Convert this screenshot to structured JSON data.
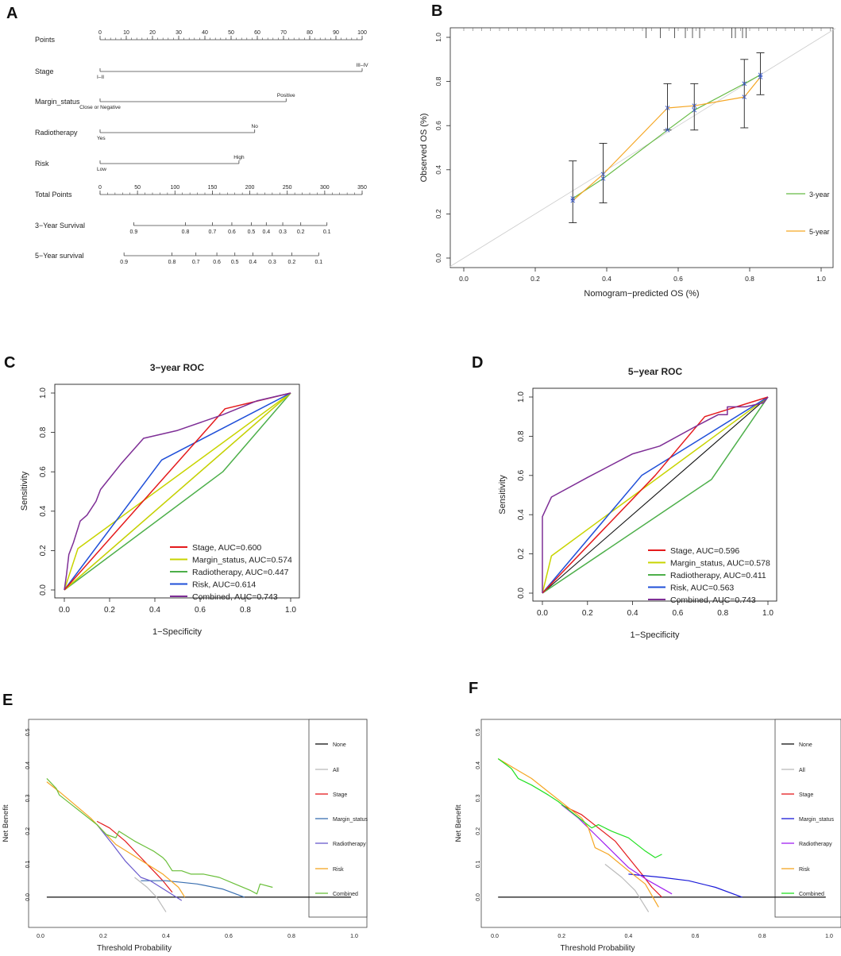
{
  "panel_letters": [
    "A",
    "B",
    "C",
    "D",
    "E",
    "F"
  ],
  "colors": {
    "stage": "#e41a1c",
    "margin": "#c8d400",
    "radio": "#4daf4a",
    "risk": "#1f4fd8",
    "combined": "#7e2e96",
    "dca_margin": "#3a6fb0",
    "dca_radio": "#6a5acd",
    "dca_risk": "#f5a623",
    "dca_comb_e": "#6abf3a",
    "dca_margin_f": "#1a1ad8",
    "dca_radio_f": "#a020f0",
    "dca_comb_f": "#22e022",
    "cal_3": "#66bb44",
    "cal_5": "#f5a623"
  },
  "chart_data": [
    {
      "panel": "A",
      "type": "nomogram",
      "rows": [
        {
          "label": "Points",
          "ticks": [
            "0",
            "10",
            "20",
            "30",
            "40",
            "50",
            "60",
            "70",
            "80",
            "90",
            "100"
          ],
          "range": [
            0,
            100
          ]
        },
        {
          "label": "Stage",
          "levels": [
            {
              "name": "I–II",
              "points": 0
            },
            {
              "name": "III–IV",
              "points": 100
            }
          ]
        },
        {
          "label": "Margin_status",
          "levels": [
            {
              "name": "Close or Negative",
              "points": 0
            },
            {
              "name": "Positive",
              "points": 71
            }
          ]
        },
        {
          "label": "Radiotherapy",
          "levels": [
            {
              "name": "Yes",
              "points": 0
            },
            {
              "name": "No",
              "points": 59
            }
          ]
        },
        {
          "label": "Risk",
          "levels": [
            {
              "name": "Low",
              "points": 0
            },
            {
              "name": "High",
              "points": 53
            }
          ]
        },
        {
          "label": "Total Points",
          "ticks": [
            "0",
            "50",
            "100",
            "150",
            "200",
            "250",
            "300",
            "350"
          ],
          "range": [
            0,
            350
          ]
        },
        {
          "label": "3−Year Survival",
          "ticks": [
            "0.9",
            "0.8",
            "0.7",
            "0.6",
            "0.5",
            "0.4",
            "0.3",
            "0.2",
            "0.1"
          ],
          "total_points_at_ticks": [
            45,
            114,
            150,
            176,
            202,
            222,
            244,
            268,
            303
          ]
        },
        {
          "label": "5−Year survival",
          "ticks": [
            "0.9",
            "0.8",
            "0.7",
            "0.6",
            "0.5",
            "0.4",
            "0.3",
            "0.2",
            "0.1"
          ],
          "total_points_at_ticks": [
            32,
            96,
            128,
            156,
            180,
            204,
            230,
            256,
            292
          ]
        }
      ]
    },
    {
      "panel": "B",
      "type": "line",
      "title": "",
      "xlabel": "Nomogram−predicted OS (%)",
      "ylabel": "Observed OS (%)",
      "xlim": [
        0,
        1
      ],
      "ylim": [
        0,
        1
      ],
      "xticks": [
        "0.0",
        "0.2",
        "0.4",
        "0.6",
        "0.8",
        "1.0"
      ],
      "yticks": [
        "0.0",
        "0.2",
        "0.4",
        "0.6",
        "0.8",
        "1.0"
      ],
      "rug": [
        0.51,
        0.55,
        0.59,
        0.62,
        0.64,
        0.66,
        0.75,
        0.76,
        0.78,
        0.79
      ],
      "errorbars": [
        {
          "x": 0.305,
          "lo": 0.16,
          "hi": 0.44
        },
        {
          "x": 0.39,
          "lo": 0.25,
          "hi": 0.52
        },
        {
          "x": 0.57,
          "lo": 0.58,
          "hi": 0.79
        },
        {
          "x": 0.645,
          "lo": 0.58,
          "hi": 0.79
        },
        {
          "x": 0.785,
          "lo": 0.59,
          "hi": 0.9
        },
        {
          "x": 0.83,
          "lo": 0.74,
          "hi": 0.93
        }
      ],
      "series": [
        {
          "name": "3-year",
          "x": [
            0.305,
            0.39,
            0.57,
            0.645,
            0.785,
            0.83
          ],
          "y": [
            0.27,
            0.36,
            0.58,
            0.67,
            0.79,
            0.83
          ]
        },
        {
          "name": "5-year",
          "x": [
            0.305,
            0.39,
            0.57,
            0.645,
            0.785,
            0.83
          ],
          "y": [
            0.26,
            0.38,
            0.68,
            0.69,
            0.73,
            0.82
          ]
        }
      ]
    },
    {
      "panel": "C",
      "type": "line",
      "title": "3−year ROC",
      "xlabel": "1−Specificity",
      "ylabel": "Sensitivity",
      "xlim": [
        0,
        1
      ],
      "ylim": [
        0,
        1
      ],
      "xticks": [
        "0.0",
        "0.2",
        "0.4",
        "0.6",
        "0.8",
        "1.0"
      ],
      "yticks": [
        "0.0",
        "0.2",
        "0.4",
        "0.6",
        "0.8",
        "1.0"
      ],
      "series": [
        {
          "name": "Stage, AUC=0.600",
          "key": "stage",
          "x": [
            0,
            0.71,
            1
          ],
          "y": [
            0,
            0.92,
            1
          ]
        },
        {
          "name": "Margin_status, AUC=0.574",
          "key": "margin",
          "x": [
            0,
            1
          ],
          "y": [
            0,
            1
          ],
          "x2": [
            0,
            0.06,
            1
          ],
          "y2": [
            0,
            0.21,
            1
          ]
        },
        {
          "name": "Radiotherapy, AUC=0.447",
          "key": "radio",
          "x": [
            0,
            0.7,
            1
          ],
          "y": [
            0,
            0.6,
            1
          ]
        },
        {
          "name": "Risk, AUC=0.614",
          "key": "risk",
          "x": [
            0,
            0.43,
            1
          ],
          "y": [
            0,
            0.66,
            1
          ]
        },
        {
          "name": "Combined, AUC=0.743",
          "key": "combined",
          "x": [
            0,
            0.01,
            0.02,
            0.04,
            0.07,
            0.1,
            0.14,
            0.16,
            0.25,
            0.35,
            0.5,
            0.7,
            0.85,
            1
          ],
          "y": [
            0,
            0.08,
            0.18,
            0.24,
            0.35,
            0.38,
            0.45,
            0.51,
            0.64,
            0.77,
            0.81,
            0.89,
            0.96,
            1
          ]
        }
      ]
    },
    {
      "panel": "D",
      "type": "line",
      "title": "5−year ROC",
      "xlabel": "1−Specificity",
      "ylabel": "Sensitivity",
      "xlim": [
        0,
        1
      ],
      "ylim": [
        0,
        1
      ],
      "xticks": [
        "0.0",
        "0.2",
        "0.4",
        "0.6",
        "0.8",
        "1.0"
      ],
      "yticks": [
        "0.0",
        "0.2",
        "0.4",
        "0.6",
        "0.8",
        "1.0"
      ],
      "series": [
        {
          "name": "Stage, AUC=0.596",
          "key": "stage",
          "x": [
            0,
            0.5,
            0.72,
            1
          ],
          "y": [
            0,
            0.6,
            0.9,
            1
          ]
        },
        {
          "name": "Margin_status, AUC=0.578",
          "key": "margin",
          "x": [
            0,
            0.04,
            1
          ],
          "y": [
            0,
            0.19,
            1
          ]
        },
        {
          "name": "Radiotherapy, AUC=0.411",
          "key": "radio",
          "x": [
            0,
            0.75,
            1
          ],
          "y": [
            0,
            0.58,
            1
          ]
        },
        {
          "name": "Risk, AUC=0.563",
          "key": "risk",
          "x": [
            0,
            0.44,
            1
          ],
          "y": [
            0,
            0.6,
            1
          ]
        },
        {
          "name": "Combined, AUC=0.743",
          "key": "combined",
          "x": [
            0,
            0,
            0.04,
            0.2,
            0.4,
            0.52,
            0.68,
            0.78,
            0.82,
            0.82,
            0.9,
            0.98,
            1
          ],
          "y": [
            0,
            0.39,
            0.49,
            0.59,
            0.71,
            0.75,
            0.85,
            0.91,
            0.91,
            0.95,
            0.95,
            0.97,
            1
          ]
        }
      ]
    },
    {
      "panel": "E",
      "type": "line",
      "title": "",
      "xlabel": "Threshold Probability",
      "ylabel": "Net Benefit",
      "xlim": [
        0,
        1
      ],
      "ylim": [
        -0.07,
        0.52
      ],
      "xticks": [
        "0.0",
        "0.2",
        "0.4",
        "0.6",
        "0.8",
        "1.0"
      ],
      "yticks": [
        "0.0",
        "0.1",
        "0.2",
        "0.3",
        "0.4",
        "0.5"
      ],
      "legend": [
        "None",
        "All",
        "Stage",
        "Margin_status",
        "Radiotherapy",
        "Risk",
        "Combined"
      ],
      "series": [
        {
          "name": "None",
          "x": [
            0.02,
            0.99
          ],
          "y": [
            0,
            0
          ]
        },
        {
          "name": "All",
          "x": [
            0.3,
            0.34,
            0.37,
            0.4
          ],
          "y": [
            0.06,
            0.03,
            0.0,
            -0.045
          ]
        },
        {
          "name": "Stage",
          "x": [
            0.18,
            0.22,
            0.27,
            0.31,
            0.35,
            0.39,
            0.42
          ],
          "y": [
            0.23,
            0.21,
            0.17,
            0.13,
            0.09,
            0.05,
            0.015
          ]
        },
        {
          "name": "Margin_status",
          "x": [
            0.32,
            0.4,
            0.5,
            0.58,
            0.65
          ],
          "y": [
            0.05,
            0.05,
            0.04,
            0.025,
            0.0
          ]
        },
        {
          "name": "Radiotherapy",
          "x": [
            0.18,
            0.23,
            0.27,
            0.32,
            0.35,
            0.4,
            0.45
          ],
          "y": [
            0.22,
            0.16,
            0.11,
            0.06,
            0.05,
            0.02,
            -0.01
          ]
        },
        {
          "name": "Risk",
          "x": [
            0.02,
            0.06,
            0.11,
            0.16,
            0.2,
            0.24,
            0.29,
            0.34,
            0.39,
            0.44,
            0.46
          ],
          "y": [
            0.35,
            0.32,
            0.28,
            0.24,
            0.2,
            0.16,
            0.13,
            0.1,
            0.07,
            0.03,
            0.0
          ]
        },
        {
          "name": "Combined",
          "x": [
            0.02,
            0.05,
            0.06,
            0.1,
            0.14,
            0.18,
            0.21,
            0.24,
            0.25,
            0.3,
            0.34,
            0.36,
            0.39,
            0.4,
            0.42,
            0.45,
            0.48,
            0.52,
            0.57,
            0.62,
            0.67,
            0.69,
            0.7,
            0.74
          ],
          "y": [
            0.36,
            0.33,
            0.31,
            0.28,
            0.25,
            0.22,
            0.19,
            0.18,
            0.2,
            0.17,
            0.15,
            0.14,
            0.12,
            0.11,
            0.08,
            0.08,
            0.07,
            0.07,
            0.06,
            0.04,
            0.02,
            0.01,
            0.04,
            0.03
          ]
        }
      ]
    },
    {
      "panel": "F",
      "type": "line",
      "title": "",
      "xlabel": "Threshold Probability",
      "ylabel": "Net Benefit",
      "xlim": [
        0,
        1
      ],
      "ylim": [
        -0.07,
        0.52
      ],
      "xticks": [
        "0.0",
        "0.2",
        "0.4",
        "0.6",
        "0.8",
        "1.0"
      ],
      "yticks": [
        "0.0",
        "0.1",
        "0.2",
        "0.3",
        "0.4",
        "0.5"
      ],
      "legend": [
        "None",
        "All",
        "Stage",
        "Margin_status",
        "Radiotherapy",
        "Risk",
        "Combined"
      ],
      "series": [
        {
          "name": "None",
          "x": [
            0.01,
            0.99
          ],
          "y": [
            0,
            0
          ]
        },
        {
          "name": "All",
          "x": [
            0.33,
            0.38,
            0.42,
            0.46
          ],
          "y": [
            0.1,
            0.06,
            0.02,
            -0.045
          ]
        },
        {
          "name": "Stage",
          "x": [
            0.2,
            0.26,
            0.31,
            0.36,
            0.4,
            0.44,
            0.47,
            0.5
          ],
          "y": [
            0.28,
            0.25,
            0.21,
            0.17,
            0.12,
            0.07,
            0.03,
            0.0
          ]
        },
        {
          "name": "Margin_status",
          "x": [
            0.4,
            0.5,
            0.58,
            0.66,
            0.74
          ],
          "y": [
            0.07,
            0.06,
            0.05,
            0.03,
            0.0
          ]
        },
        {
          "name": "Radiotherapy",
          "x": [
            0.2,
            0.25,
            0.3,
            0.35,
            0.4,
            0.46,
            0.53
          ],
          "y": [
            0.28,
            0.24,
            0.19,
            0.14,
            0.09,
            0.05,
            0.01
          ]
        },
        {
          "name": "Risk",
          "x": [
            0.01,
            0.06,
            0.11,
            0.16,
            0.21,
            0.26,
            0.28,
            0.3,
            0.34,
            0.4,
            0.45,
            0.49
          ],
          "y": [
            0.42,
            0.39,
            0.36,
            0.32,
            0.28,
            0.24,
            0.21,
            0.15,
            0.13,
            0.08,
            0.04,
            -0.03
          ]
        },
        {
          "name": "Combined",
          "x": [
            0.01,
            0.05,
            0.07,
            0.11,
            0.16,
            0.19,
            0.24,
            0.29,
            0.31,
            0.35,
            0.4,
            0.45,
            0.48,
            0.5
          ],
          "y": [
            0.42,
            0.39,
            0.36,
            0.34,
            0.31,
            0.29,
            0.25,
            0.21,
            0.22,
            0.2,
            0.18,
            0.14,
            0.12,
            0.13
          ]
        }
      ]
    }
  ]
}
